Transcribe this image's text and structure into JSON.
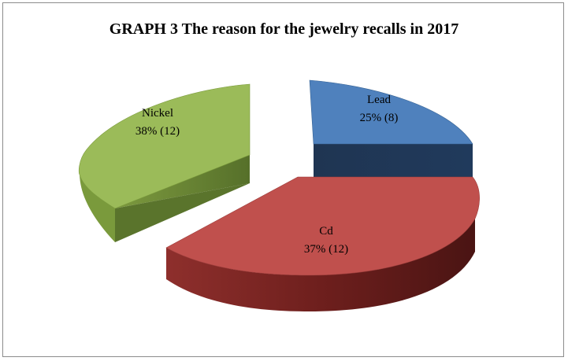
{
  "chart_data": {
    "type": "pie",
    "title": "GRAPH 3 The reason for the jewelry recalls in 2017",
    "slices": [
      {
        "name": "Lead",
        "percent": 25,
        "count": 8,
        "pct_label": "25% (8)",
        "color": "#4f81bd"
      },
      {
        "name": "Cd",
        "percent": 37,
        "count": 12,
        "pct_label": "37% (12)",
        "color": "#c0504d"
      },
      {
        "name": "Nickel",
        "percent": 38,
        "count": 12,
        "pct_label": "38% (12)",
        "color": "#9bbb59"
      }
    ]
  }
}
